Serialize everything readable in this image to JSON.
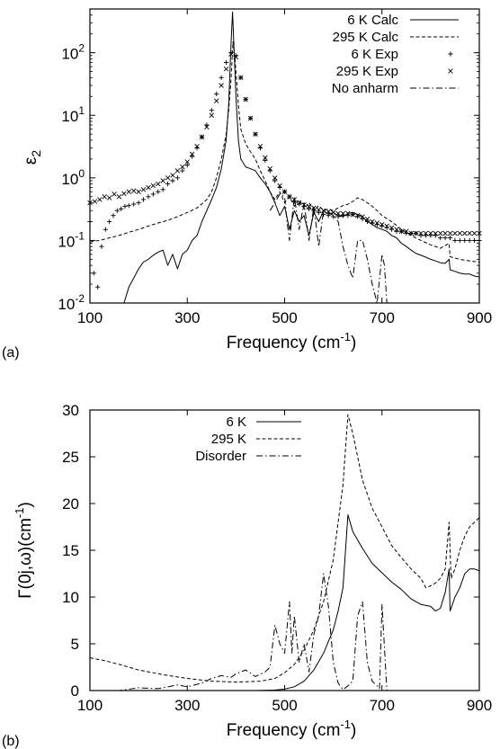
{
  "chart_data": [
    {
      "type": "line",
      "panel_label": "(a)",
      "xlabel": "Frequency (cm",
      "xlabel_sup": "-1",
      "xlabel_end": ")",
      "ylabel": "ε",
      "ylabel_sub": "2",
      "xlim": [
        100,
        900
      ],
      "ylim": [
        0.01,
        500
      ],
      "yscale": "log",
      "grid": false,
      "legend_position": "top-right",
      "xticks": [
        "100",
        "300",
        "500",
        "700",
        "900"
      ],
      "yticks": [
        {
          "base": "10",
          "exp": "2",
          "value": 100
        },
        {
          "base": "10",
          "exp": "1",
          "value": 10
        },
        {
          "base": "10",
          "exp": "0",
          "value": 1
        },
        {
          "base": "10",
          "exp": "-1",
          "value": 0.1
        },
        {
          "base": "10",
          "exp": "-2",
          "value": 0.01
        }
      ],
      "series": [
        {
          "name": "6 K Calc",
          "style": "solid",
          "x": [
            170,
            180,
            190,
            200,
            210,
            220,
            230,
            240,
            250,
            260,
            270,
            280,
            290,
            300,
            310,
            320,
            330,
            340,
            350,
            360,
            370,
            380,
            385,
            390,
            393,
            396,
            400,
            405,
            410,
            420,
            430,
            440,
            450,
            460,
            470,
            480,
            490,
            500,
            510,
            520,
            530,
            540,
            550,
            560,
            570,
            580,
            590,
            600,
            610,
            620,
            630,
            640,
            650,
            660,
            670,
            680,
            690,
            700,
            710,
            720,
            730,
            740,
            750,
            760,
            770,
            780,
            790,
            800,
            810,
            820,
            830,
            838,
            840,
            850,
            860,
            870,
            880,
            890,
            900
          ],
          "y": [
            0.01,
            0.018,
            0.025,
            0.035,
            0.045,
            0.05,
            0.058,
            0.065,
            0.07,
            0.04,
            0.06,
            0.035,
            0.06,
            0.07,
            0.1,
            0.12,
            0.2,
            0.3,
            0.45,
            0.7,
            1.4,
            4,
            15,
            150,
            450,
            120,
            20,
            4,
            2,
            1.5,
            1.4,
            1.3,
            1.0,
            0.8,
            0.6,
            0.4,
            0.25,
            0.35,
            0.15,
            0.3,
            0.2,
            0.25,
            0.12,
            0.28,
            0.2,
            0.3,
            0.26,
            0.28,
            0.25,
            0.24,
            0.27,
            0.28,
            0.26,
            0.24,
            0.2,
            0.18,
            0.16,
            0.15,
            0.14,
            0.12,
            0.11,
            0.09,
            0.08,
            0.07,
            0.062,
            0.058,
            0.054,
            0.05,
            0.047,
            0.044,
            0.043,
            0.05,
            0.034,
            0.032,
            0.03,
            0.029,
            0.029,
            0.027,
            0.026
          ]
        },
        {
          "name": "295 K Calc",
          "style": "dashed",
          "x": [
            100,
            120,
            140,
            160,
            180,
            200,
            220,
            240,
            260,
            280,
            300,
            320,
            340,
            350,
            360,
            370,
            380,
            385,
            390,
            394,
            398,
            402,
            406,
            410,
            420,
            430,
            440,
            450,
            460,
            470,
            480,
            490,
            500,
            510,
            520,
            530,
            540,
            550,
            560,
            570,
            580,
            590,
            600,
            610,
            620,
            630,
            640,
            650,
            660,
            670,
            680,
            690,
            700,
            720,
            740,
            760,
            780,
            800,
            820,
            838,
            840,
            860,
            880,
            900
          ],
          "y": [
            0.095,
            0.1,
            0.11,
            0.12,
            0.135,
            0.15,
            0.17,
            0.19,
            0.21,
            0.24,
            0.28,
            0.33,
            0.45,
            0.6,
            1.0,
            2.0,
            5,
            12,
            40,
            150,
            80,
            30,
            12,
            6,
            3.5,
            2.6,
            2.0,
            1.3,
            0.9,
            0.6,
            0.45,
            0.6,
            0.4,
            0.5,
            0.35,
            0.45,
            0.32,
            0.4,
            0.3,
            0.36,
            0.3,
            0.32,
            0.3,
            0.33,
            0.36,
            0.38,
            0.42,
            0.48,
            0.45,
            0.4,
            0.35,
            0.3,
            0.25,
            0.2,
            0.15,
            0.12,
            0.1,
            0.085,
            0.075,
            0.09,
            0.055,
            0.05,
            0.047,
            0.045
          ]
        },
        {
          "name": "6 K Exp",
          "style": "plus",
          "x": [
            100,
            108,
            116,
            124,
            132,
            140,
            148,
            156,
            164,
            172,
            180,
            190,
            200,
            210,
            220,
            230,
            240,
            250,
            260,
            270,
            280,
            290,
            300,
            310,
            320,
            330,
            340,
            350,
            360,
            370,
            380,
            390,
            400,
            410,
            420,
            430,
            440,
            450,
            460,
            470,
            480,
            490,
            500,
            510,
            520,
            530,
            540,
            550,
            560,
            570,
            580,
            590,
            600,
            610,
            620,
            630,
            640,
            650,
            660,
            670,
            680,
            690,
            700,
            710,
            720,
            730,
            740,
            750,
            760,
            770,
            780,
            790,
            800,
            810,
            820,
            830,
            840,
            850,
            860,
            870,
            880,
            890,
            900
          ],
          "y": [
            0.2,
            0.03,
            0.018,
            0.08,
            0.15,
            0.2,
            0.25,
            0.3,
            0.32,
            0.35,
            0.36,
            0.38,
            0.4,
            0.45,
            0.5,
            0.55,
            0.6,
            0.65,
            0.8,
            0.9,
            1.0,
            1.3,
            1.6,
            2.2,
            3,
            4.5,
            7,
            12,
            22,
            40,
            70,
            100,
            90,
            40,
            18,
            9,
            5,
            3,
            1.9,
            1.3,
            0.9,
            0.7,
            0.6,
            0.5,
            0.42,
            0.38,
            0.35,
            0.32,
            0.3,
            0.28,
            0.26,
            0.25,
            0.24,
            0.24,
            0.25,
            0.25,
            0.26,
            0.24,
            0.22,
            0.2,
            0.19,
            0.18,
            0.17,
            0.16,
            0.15,
            0.14,
            0.14,
            0.13,
            0.13,
            0.13,
            0.12,
            0.12,
            0.12,
            0.12,
            0.11,
            0.11,
            0.11,
            0.1,
            0.1,
            0.1,
            0.1,
            0.1,
            0.1
          ]
        },
        {
          "name": "295 K Exp",
          "style": "cross",
          "x": [
            100,
            110,
            120,
            130,
            140,
            150,
            160,
            170,
            180,
            190,
            200,
            210,
            220,
            230,
            240,
            250,
            260,
            270,
            280,
            290,
            300,
            310,
            320,
            330,
            340,
            350,
            360,
            370,
            380,
            390,
            400,
            410,
            420,
            430,
            440,
            450,
            460,
            470,
            480,
            490,
            500,
            510,
            520,
            530,
            540,
            550,
            560,
            570,
            580,
            590,
            600,
            610,
            620,
            630,
            640,
            650,
            660,
            670,
            680,
            690,
            700,
            710,
            720,
            730,
            740,
            750,
            760,
            770,
            780,
            790,
            800,
            810,
            820,
            830,
            840,
            850,
            860,
            870,
            880,
            890,
            900
          ],
          "y": [
            0.4,
            0.42,
            0.45,
            0.5,
            0.48,
            0.55,
            0.5,
            0.56,
            0.6,
            0.62,
            0.6,
            0.65,
            0.7,
            0.75,
            0.8,
            0.9,
            1.0,
            1.1,
            1.3,
            1.5,
            1.8,
            2.4,
            3.2,
            4.5,
            6.5,
            10,
            17,
            30,
            55,
            95,
            85,
            40,
            18,
            9,
            5,
            3.2,
            2.1,
            1.4,
            1.0,
            0.75,
            0.6,
            0.5,
            0.45,
            0.4,
            0.37,
            0.35,
            0.33,
            0.31,
            0.3,
            0.29,
            0.28,
            0.27,
            0.27,
            0.27,
            0.26,
            0.25,
            0.24,
            0.22,
            0.2,
            0.19,
            0.18,
            0.17,
            0.16,
            0.15,
            0.14,
            0.14,
            0.13,
            0.13,
            0.13,
            0.13,
            0.13,
            0.13,
            0.13,
            0.13,
            0.13,
            0.13,
            0.13,
            0.13,
            0.13,
            0.13,
            0.13
          ]
        },
        {
          "name": "No anharm",
          "style": "dashdot",
          "x": [
            470,
            480,
            490,
            500,
            505,
            510,
            520,
            530,
            540,
            550,
            560,
            570,
            580,
            590,
            600,
            610,
            620,
            630,
            640,
            650,
            660,
            670,
            680,
            690,
            700,
            705,
            710
          ],
          "y": [
            0.3,
            0.4,
            0.55,
            0.5,
            0.2,
            0.1,
            0.5,
            0.15,
            0.4,
            0.1,
            0.35,
            0.08,
            0.3,
            0.28,
            0.25,
            0.2,
            0.08,
            0.04,
            0.025,
            0.1,
            0.1,
            0.05,
            0.02,
            0.01,
            0.06,
            0.04,
            0.01
          ]
        }
      ]
    },
    {
      "type": "line",
      "panel_label": "(b)",
      "xlabel": "Frequency (cm",
      "xlabel_sup": "-1",
      "xlabel_end": ")",
      "ylabel": "Γ(0j,ω)(cm",
      "ylabel_sup": "-1",
      "ylabel_end": ")",
      "xlim": [
        100,
        900
      ],
      "ylim": [
        0,
        30
      ],
      "grid": false,
      "legend_position": "top-left",
      "xticks": [
        "100",
        "300",
        "500",
        "700",
        "900"
      ],
      "yticks": [
        "0",
        "5",
        "10",
        "15",
        "20",
        "25",
        "30"
      ],
      "series": [
        {
          "name": "6 K",
          "style": "solid",
          "x": [
            100,
            300,
            440,
            480,
            500,
            520,
            540,
            560,
            580,
            600,
            610,
            620,
            630,
            640,
            660,
            680,
            700,
            720,
            740,
            760,
            780,
            800,
            810,
            820,
            830,
            838,
            840,
            850,
            860,
            870,
            880,
            890,
            900
          ],
          "y": [
            0,
            0,
            0,
            0.05,
            0.15,
            0.4,
            1.0,
            2.2,
            4.0,
            6.5,
            8.5,
            11,
            18.8,
            17,
            15.2,
            13.6,
            12.6,
            11.6,
            10.8,
            9.8,
            9.2,
            9,
            8.5,
            8.8,
            10.5,
            13,
            8.5,
            10,
            11,
            12.5,
            13,
            13,
            12.8
          ]
        },
        {
          "name": "295 K",
          "style": "dashed",
          "x": [
            100,
            130,
            160,
            200,
            250,
            300,
            350,
            400,
            450,
            480,
            500,
            520,
            540,
            560,
            580,
            600,
            610,
            620,
            630,
            640,
            660,
            680,
            700,
            720,
            740,
            760,
            780,
            790,
            800,
            810,
            820,
            830,
            838,
            842,
            850,
            860,
            870,
            880,
            890,
            900
          ],
          "y": [
            3.5,
            3.2,
            2.8,
            2.2,
            1.7,
            1.3,
            1.0,
            0.9,
            1.0,
            1.3,
            1.9,
            2.8,
            4.3,
            6.5,
            9.5,
            14,
            18,
            22,
            29.5,
            27.5,
            22.5,
            19.5,
            17.5,
            15.5,
            14.2,
            13,
            12,
            11,
            11.2,
            11.5,
            12,
            13,
            18,
            12,
            13,
            15,
            16.5,
            17.5,
            18,
            18.5
          ]
        },
        {
          "name": "Disorder",
          "style": "dashdot",
          "x": [
            100,
            160,
            200,
            240,
            280,
            300,
            330,
            350,
            370,
            390,
            400,
            420,
            440,
            460,
            470,
            480,
            490,
            500,
            510,
            515,
            520,
            530,
            540,
            550,
            560,
            570,
            580,
            590,
            600,
            610,
            620,
            630,
            640,
            650,
            660,
            670,
            680,
            690,
            695,
            700,
            710
          ],
          "y": [
            0,
            0,
            0.3,
            0.2,
            0.6,
            0.4,
            0.8,
            1.3,
            1.6,
            1.4,
            1.8,
            2.2,
            1.5,
            2.0,
            2.5,
            7,
            5,
            4,
            9.5,
            4,
            8,
            3,
            5,
            2,
            6,
            8,
            12.5,
            9,
            3,
            0.8,
            0.1,
            0.5,
            1,
            8,
            9.5,
            3,
            1,
            0.5,
            0.2,
            9.2,
            0
          ]
        }
      ]
    }
  ]
}
